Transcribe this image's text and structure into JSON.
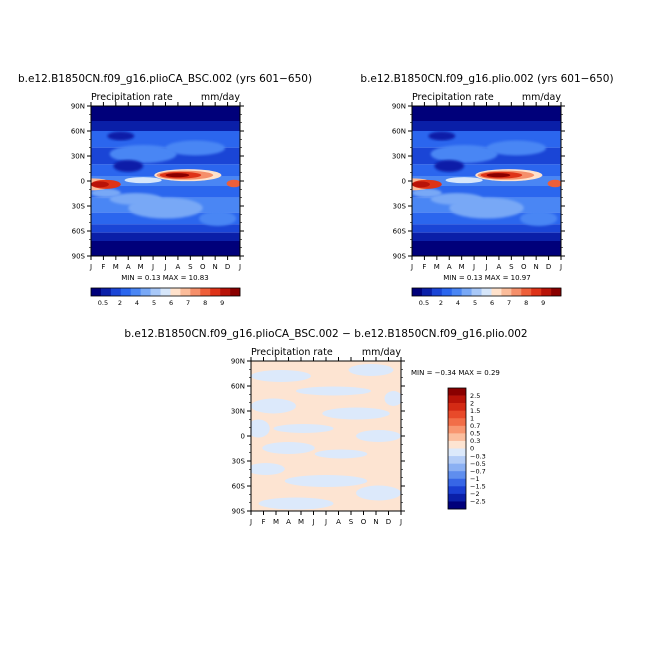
{
  "chart_data": [
    {
      "type": "heatmap",
      "title": "b.e12.B1850CN.f09_g16.plioCA_BSC.002 (yrs 601−650)",
      "subtitle_left": "Precipitation rate",
      "units": "mm/day",
      "stats": "MIN =    0.13  MAX =    10.83",
      "x_ticks": [
        "J",
        "F",
        "M",
        "A",
        "M",
        "J",
        "J",
        "A",
        "S",
        "O",
        "N",
        "D",
        "J"
      ],
      "y_ticks": [
        "90N",
        "60N",
        "30N",
        "0",
        "30S",
        "60S",
        "90S"
      ],
      "y_range": [
        -90,
        90
      ],
      "min": 0.13,
      "max": 10.83,
      "colorbar_labels": [
        "0.5",
        "2",
        "4",
        "5",
        "6",
        "7",
        "8",
        "9"
      ],
      "colorbar_colors": [
        "#00007a",
        "#0a1fa8",
        "#1a45d6",
        "#2b66ee",
        "#4a86f4",
        "#78a8f6",
        "#a8c8f8",
        "#d6e6fa",
        "#ffe2cc",
        "#fbbc9a",
        "#f58f6a",
        "#ee5f3a",
        "#de3318",
        "#b81308",
        "#8a0000"
      ]
    },
    {
      "type": "heatmap",
      "title": "b.e12.B1850CN.f09_g16.plio.002 (yrs 601−650)",
      "subtitle_left": "Precipitation rate",
      "units": "mm/day",
      "stats": "MIN =    0.13  MAX =    10.97",
      "x_ticks": [
        "J",
        "F",
        "M",
        "A",
        "M",
        "J",
        "J",
        "A",
        "S",
        "O",
        "N",
        "D",
        "J"
      ],
      "y_ticks": [
        "90N",
        "60N",
        "30N",
        "0",
        "30S",
        "60S",
        "90S"
      ],
      "y_range": [
        -90,
        90
      ],
      "min": 0.13,
      "max": 10.97,
      "colorbar_labels": [
        "0.5",
        "2",
        "4",
        "5",
        "6",
        "7",
        "8",
        "9"
      ],
      "colorbar_colors": [
        "#00007a",
        "#0a1fa8",
        "#1a45d6",
        "#2b66ee",
        "#4a86f4",
        "#78a8f6",
        "#a8c8f8",
        "#d6e6fa",
        "#ffe2cc",
        "#fbbc9a",
        "#f58f6a",
        "#ee5f3a",
        "#de3318",
        "#b81308",
        "#8a0000"
      ]
    },
    {
      "type": "heatmap",
      "title": "b.e12.B1850CN.f09_g16.plioCA_BSC.002 − b.e12.B1850CN.f09_g16.plio.002",
      "subtitle_left": "Precipitation rate",
      "units": "mm/day",
      "stats": "MIN =    −0.34  MAX =    0.29",
      "x_ticks": [
        "J",
        "F",
        "M",
        "A",
        "M",
        "J",
        "J",
        "A",
        "S",
        "O",
        "N",
        "D",
        "J"
      ],
      "y_ticks": [
        "90N",
        "60N",
        "30N",
        "0",
        "30S",
        "60S",
        "90S"
      ],
      "y_range": [
        -90,
        90
      ],
      "min": -0.34,
      "max": 0.29,
      "colorbar_labels": [
        "2.5",
        "2",
        "1.5",
        "1",
        "0.7",
        "0.5",
        "0.3",
        "0",
        "−0.3",
        "−0.5",
        "−0.7",
        "−1",
        "−1.5",
        "−2",
        "−2.5"
      ],
      "colorbar_colors": [
        "#8a0000",
        "#b81308",
        "#d42a14",
        "#e84a2a",
        "#f26e48",
        "#f89670",
        "#fbbe9e",
        "#fde4d2",
        "#dce9fb",
        "#b4cdf7",
        "#8bb0f3",
        "#5f8eee",
        "#3766e6",
        "#1a3fd2",
        "#0a1fa8",
        "#00007a"
      ]
    }
  ]
}
